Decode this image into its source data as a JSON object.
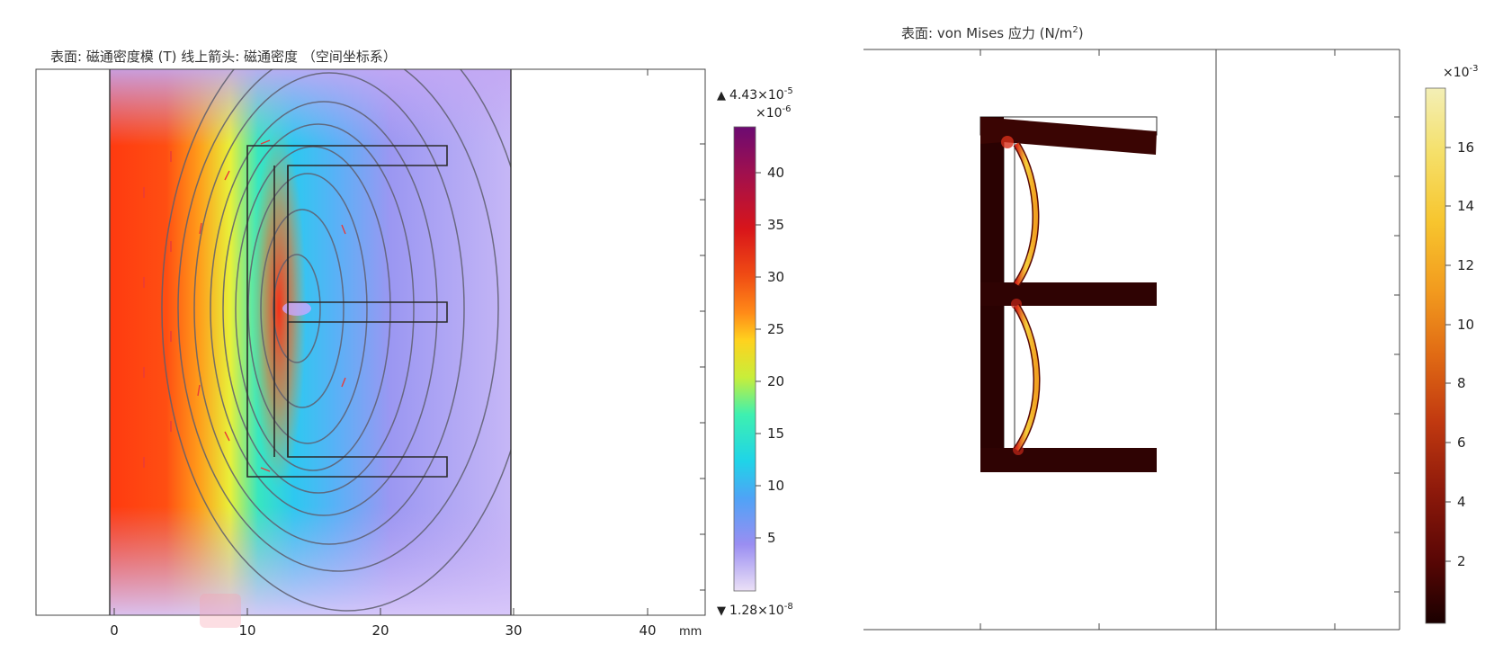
{
  "left_plot": {
    "title": "表面: 磁通密度模 (T)  线上箭头: 磁通密度  （空间坐标系）",
    "x_ticks": [
      "0",
      "10",
      "20",
      "30",
      "40"
    ],
    "x_unit": "mm",
    "colorbar": {
      "max_label": "4.43×10",
      "max_exp": "-5",
      "scale_label": "×10",
      "scale_exp": "-6",
      "ticks": [
        "40",
        "35",
        "30",
        "25",
        "20",
        "15",
        "10",
        "5"
      ],
      "min_label": "1.28×10",
      "min_exp": "-8",
      "colormap": [
        "#ebe0f6",
        "#9a8ef2",
        "#4fa3f6",
        "#1fd4e8",
        "#3ef0b0",
        "#c8ee3a",
        "#ffd21e",
        "#ff8a18",
        "#f04c14",
        "#d8151a",
        "#a0104e",
        "#6c0a72"
      ]
    }
  },
  "right_plot": {
    "title": "表面: von Mises 应力 (N/m",
    "title_sup": "2",
    "title_end": ")",
    "colorbar": {
      "scale_label": "×10",
      "scale_exp": "-3",
      "ticks": [
        "16",
        "14",
        "12",
        "10",
        "8",
        "6",
        "4",
        "2"
      ],
      "colormap": [
        "#1a0000",
        "#5a0705",
        "#8f1a0b",
        "#c23a10",
        "#e06a14",
        "#f29a1e",
        "#f7c52e",
        "#f5e06a",
        "#f3efb6"
      ]
    }
  }
}
